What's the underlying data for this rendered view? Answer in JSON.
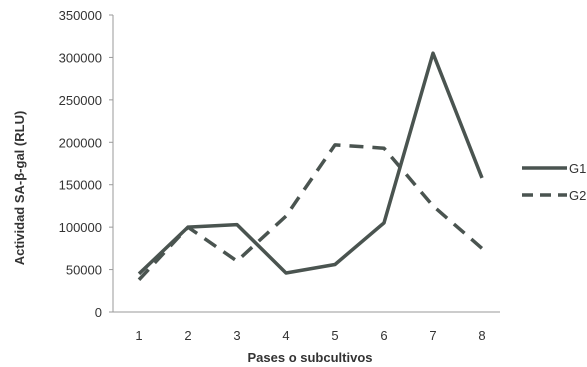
{
  "chart_data": {
    "type": "line",
    "title": "",
    "xlabel": "Pases o subcultivos",
    "ylabel": "Actividad SA-β-gal (RLU)",
    "categories": [
      "1",
      "2",
      "3",
      "4",
      "5",
      "6",
      "7",
      "8"
    ],
    "ylim": [
      0,
      350000
    ],
    "yticks": [
      "0",
      "50000",
      "100000",
      "150000",
      "200000",
      "250000",
      "300000",
      "350000"
    ],
    "grid": false,
    "legend_position": "right",
    "series": [
      {
        "name": "G1",
        "style": "solid",
        "color": "#4a5450",
        "values": [
          45000,
          100000,
          103000,
          46000,
          56000,
          105000,
          305000,
          158000
        ]
      },
      {
        "name": "G2",
        "style": "dashed",
        "color": "#4a5450",
        "values": [
          38000,
          100000,
          60000,
          113000,
          197000,
          193000,
          125000,
          75000
        ]
      }
    ]
  }
}
